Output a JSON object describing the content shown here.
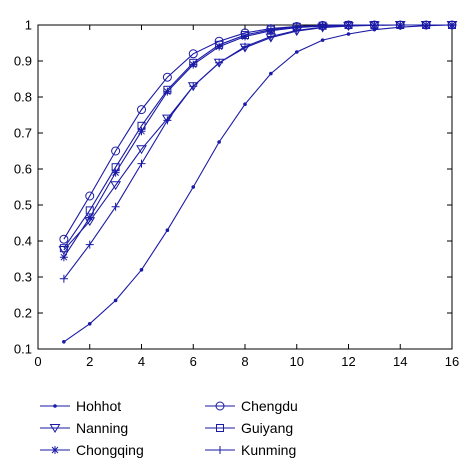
{
  "chart_data": {
    "type": "line",
    "title": "",
    "xlabel": "",
    "ylabel": "",
    "xlim": [
      0,
      16
    ],
    "ylim": [
      0.1,
      1.0
    ],
    "xticks": [
      0,
      2,
      4,
      6,
      8,
      10,
      12,
      14,
      16
    ],
    "yticks": [
      0.1,
      0.2,
      0.3,
      0.4,
      0.5,
      0.6,
      0.7,
      0.8,
      0.9,
      1
    ],
    "grid": false,
    "legend_position": "bottom",
    "line_color": "#1a1aa6",
    "x": [
      1,
      2,
      3,
      4,
      5,
      6,
      7,
      8,
      9,
      10,
      11,
      12,
      13,
      14,
      15,
      16
    ],
    "series": [
      {
        "name": "Hohhot",
        "marker": "dot",
        "values": [
          0.12,
          0.17,
          0.235,
          0.32,
          0.43,
          0.55,
          0.675,
          0.78,
          0.865,
          0.925,
          0.958,
          0.975,
          0.987,
          0.994,
          0.998,
          1.0
        ]
      },
      {
        "name": "Nanning",
        "marker": "triangle-down",
        "values": [
          0.375,
          0.455,
          0.555,
          0.655,
          0.74,
          0.83,
          0.895,
          0.937,
          0.965,
          0.983,
          0.993,
          0.997,
          0.999,
          1.0,
          1.0,
          1.0
        ]
      },
      {
        "name": "Chongqing",
        "marker": "asterisk",
        "values": [
          0.355,
          0.465,
          0.59,
          0.705,
          0.815,
          0.89,
          0.94,
          0.968,
          0.984,
          0.993,
          0.997,
          0.999,
          1.0,
          1.0,
          1.0,
          1.0
        ]
      },
      {
        "name": "Chengdu",
        "marker": "circle",
        "values": [
          0.405,
          0.525,
          0.65,
          0.765,
          0.855,
          0.92,
          0.955,
          0.978,
          0.99,
          0.996,
          0.999,
          1.0,
          1.0,
          1.0,
          1.0,
          1.0
        ]
      },
      {
        "name": "Guiyang",
        "marker": "square",
        "values": [
          0.38,
          0.485,
          0.605,
          0.72,
          0.82,
          0.895,
          0.945,
          0.972,
          0.987,
          0.995,
          0.998,
          1.0,
          1.0,
          1.0,
          1.0,
          1.0
        ]
      },
      {
        "name": "Kunming",
        "marker": "plus",
        "values": [
          0.295,
          0.39,
          0.495,
          0.615,
          0.735,
          0.83,
          0.895,
          0.94,
          0.968,
          0.985,
          0.994,
          0.998,
          1.0,
          1.0,
          1.0,
          1.0
        ]
      }
    ]
  }
}
